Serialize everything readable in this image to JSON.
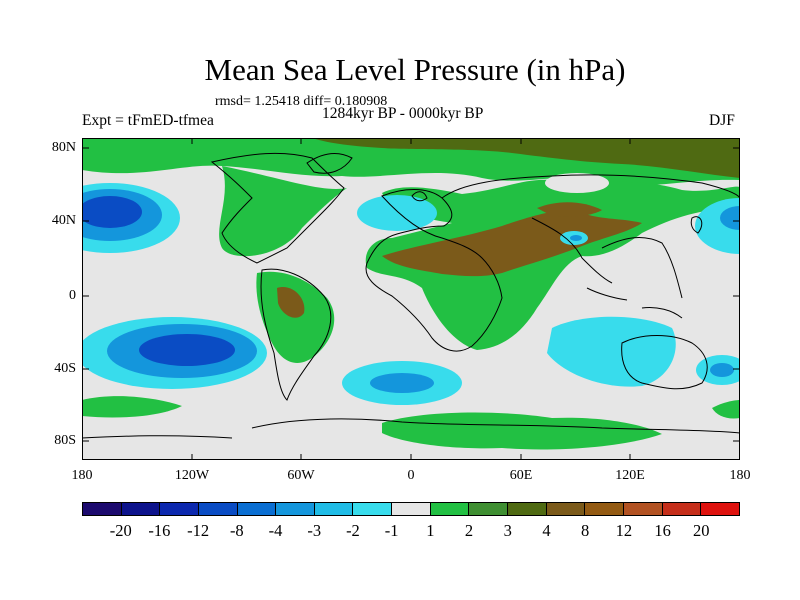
{
  "title": "Mean Sea Level Pressure (in hPa)",
  "stats": "rmsd= 1.25418 diff= 0.180908",
  "period": "1284kyr BP - 0000kyr BP",
  "experiment": "Expt = tFmED-tfmea",
  "season": "DJF",
  "map": {
    "y_labels": [
      "80N",
      "40N",
      "0",
      "40S",
      "80S"
    ],
    "x_labels": [
      "180",
      "120W",
      "60W",
      "0",
      "60E",
      "120E",
      "180"
    ]
  },
  "colorbar": {
    "colors": [
      "#1c0a6e",
      "#0d138c",
      "#0c28ae",
      "#0a4cc4",
      "#0a6ed2",
      "#1496dc",
      "#20bce6",
      "#38dcec",
      "#e6e6e6",
      "#22c043",
      "#3f8f32",
      "#4f6a12",
      "#7b5a1a",
      "#935a12",
      "#b25222",
      "#c52e1a",
      "#de120e"
    ],
    "labels": [
      "-20",
      "-16",
      "-12",
      "-8",
      "-4",
      "-3",
      "-2",
      "-1",
      "1",
      "2",
      "3",
      "4",
      "8",
      "12",
      "16",
      "20"
    ]
  }
}
